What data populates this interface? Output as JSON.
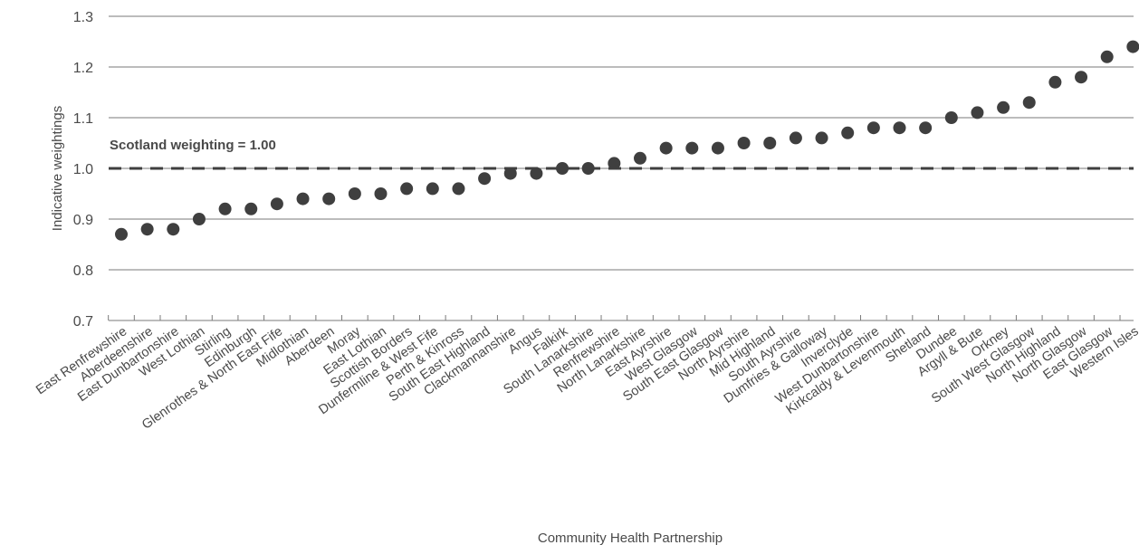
{
  "chart_data": {
    "type": "scatter",
    "ylabel": "Indicative weightings",
    "xlabel": "Community Health Partnership",
    "ylim": [
      0.7,
      1.3
    ],
    "yticks": [
      "0.7",
      "0.8",
      "0.9",
      "1.0",
      "1.1",
      "1.2",
      "1.3"
    ],
    "grid": "horizontal",
    "reference_line": {
      "value": 1.0,
      "style": "dashed",
      "label": "Scotland weighting = 1.00"
    },
    "marker_color": "#3f3f3f",
    "categories": [
      "East Renfrewshire",
      "Aberdeenshire",
      "East Dunbartonshire",
      "West Lothian",
      "Stirling",
      "Edinburgh",
      "Glenrothes & North East Fife",
      "Midlothian",
      "Aberdeen",
      "Moray",
      "East Lothian",
      "Scottish Borders",
      "Dunfermline & West Fife",
      "Perth & Kinross",
      "South East Highland",
      "Clackmannanshire",
      "Angus",
      "Falkirk",
      "South Lanarkshire",
      "Renfrewshire",
      "North Lanarkshire",
      "East Ayrshire",
      "West Glasgow",
      "South East Glasgow",
      "North Ayrshire",
      "Mid Highland",
      "South Ayrshire",
      "Dumfries & Galloway",
      "Inverclyde",
      "West Dunbartonshire",
      "Kirkcaldy & Levenmouth",
      "Shetland",
      "Dundee",
      "Argyll & Bute",
      "Orkney",
      "South West Glasgow",
      "North Highland",
      "North Glasgow",
      "East Glasgow",
      "Western Isles"
    ],
    "values": [
      0.87,
      0.88,
      0.88,
      0.9,
      0.92,
      0.92,
      0.93,
      0.94,
      0.94,
      0.95,
      0.95,
      0.96,
      0.96,
      0.96,
      0.98,
      0.99,
      0.99,
      1.0,
      1.0,
      1.01,
      1.02,
      1.04,
      1.04,
      1.04,
      1.05,
      1.05,
      1.06,
      1.06,
      1.07,
      1.08,
      1.08,
      1.08,
      1.1,
      1.11,
      1.12,
      1.13,
      1.17,
      1.18,
      1.22,
      1.24
    ]
  }
}
